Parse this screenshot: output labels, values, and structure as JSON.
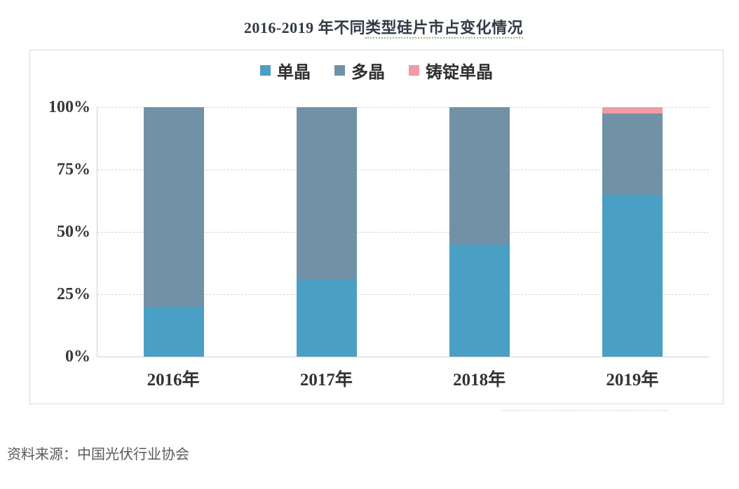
{
  "page": {
    "title_part1": "2016-2019 年不同",
    "title_part2": "类型硅片市占变化情况",
    "source_note": "资料来源：中国光伏行业协会"
  },
  "chart_data": {
    "type": "bar",
    "stacked": true,
    "title": "2016-2019 年不同类型硅片市占变化情况",
    "categories": [
      "2016年",
      "2017年",
      "2018年",
      "2019年"
    ],
    "series": [
      {
        "name": "单晶",
        "color": "#4aa0c4",
        "values": [
          20,
          31,
          45,
          65
        ]
      },
      {
        "name": "多晶",
        "color": "#7191a7",
        "values": [
          80,
          69,
          55,
          32.5
        ]
      },
      {
        "name": "铸锭单晶",
        "color": "#f19ca4",
        "values": [
          0,
          0,
          0,
          2.5
        ]
      }
    ],
    "xlabel": "",
    "ylabel": "",
    "ylim": [
      0,
      100
    ],
    "yticks": [
      "0%",
      "25%",
      "50%",
      "75%",
      "100%"
    ],
    "grid": "horizontal dashed",
    "legend_position": "top",
    "panel_border_color": "#d9d9d9",
    "source": "中国光伏行业协会"
  }
}
